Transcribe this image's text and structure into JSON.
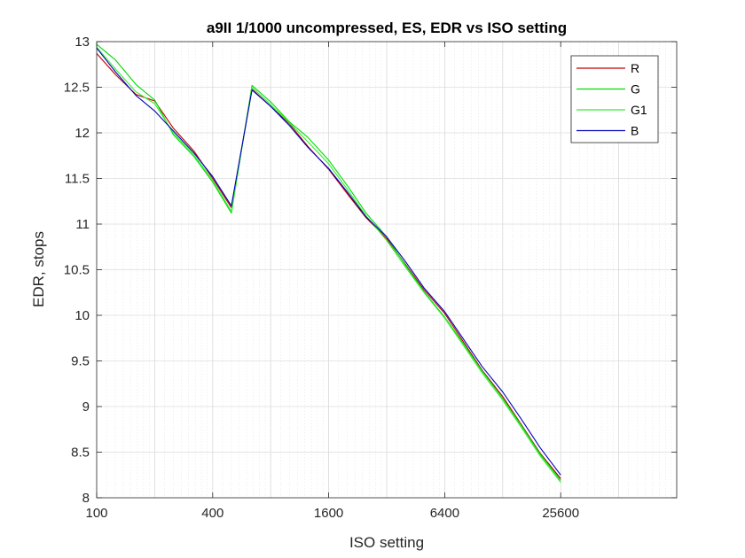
{
  "chart_data": {
    "type": "line",
    "title": "a9II 1/1000 uncompressed, ES, EDR vs ISO setting",
    "xlabel": "ISO setting",
    "ylabel": "EDR, stops",
    "xscale": "log2",
    "xlim": [
      100,
      102400
    ],
    "ylim": [
      8,
      13
    ],
    "x_ticks": [
      100,
      400,
      1600,
      6400,
      25600
    ],
    "x_tick_labels": [
      "100",
      "400",
      "1600",
      "6400",
      "25600"
    ],
    "y_ticks": [
      8,
      8.5,
      9,
      9.5,
      10,
      10.5,
      11,
      11.5,
      12,
      12.5,
      13
    ],
    "y_tick_labels": [
      "8",
      "8.5",
      "9",
      "9.5",
      "10",
      "10.5",
      "11",
      "11.5",
      "12",
      "12.5",
      "13"
    ],
    "grid": true,
    "minor_grid": true,
    "legend_position": "top-right",
    "x": [
      100,
      125,
      160,
      200,
      250,
      320,
      400,
      500,
      640,
      800,
      1000,
      1250,
      1600,
      2000,
      2500,
      3200,
      4000,
      5000,
      6400,
      8000,
      10000,
      12800,
      16000,
      20000,
      25600
    ],
    "series": [
      {
        "name": "R",
        "color": "#c00000",
        "values": [
          12.87,
          12.64,
          12.42,
          12.35,
          12.05,
          11.8,
          11.5,
          11.18,
          12.48,
          12.29,
          12.1,
          11.85,
          11.6,
          11.33,
          11.07,
          10.84,
          10.56,
          10.28,
          10.02,
          9.71,
          9.4,
          9.11,
          8.8,
          8.49,
          8.21
        ]
      },
      {
        "name": "G",
        "color": "#00dd00",
        "values": [
          12.97,
          12.8,
          12.53,
          12.36,
          11.98,
          11.74,
          11.46,
          11.12,
          12.52,
          12.34,
          12.12,
          11.95,
          11.7,
          11.42,
          11.12,
          10.86,
          10.55,
          10.26,
          9.98,
          9.69,
          9.39,
          9.09,
          8.79,
          8.48,
          8.19
        ]
      },
      {
        "name": "G1",
        "color": "#33ee33",
        "values": [
          12.94,
          12.7,
          12.45,
          12.32,
          12.0,
          11.76,
          11.48,
          11.14,
          12.5,
          12.31,
          12.11,
          11.9,
          11.66,
          11.38,
          11.09,
          10.82,
          10.53,
          10.25,
          9.97,
          9.67,
          9.37,
          9.07,
          8.77,
          8.46,
          8.17
        ]
      },
      {
        "name": "B",
        "color": "#0000bb",
        "values": [
          12.93,
          12.67,
          12.41,
          12.24,
          12.02,
          11.78,
          11.52,
          11.2,
          12.47,
          12.29,
          12.08,
          11.84,
          11.61,
          11.35,
          11.08,
          10.86,
          10.59,
          10.3,
          10.04,
          9.74,
          9.44,
          9.16,
          8.86,
          8.55,
          8.25
        ]
      }
    ]
  }
}
